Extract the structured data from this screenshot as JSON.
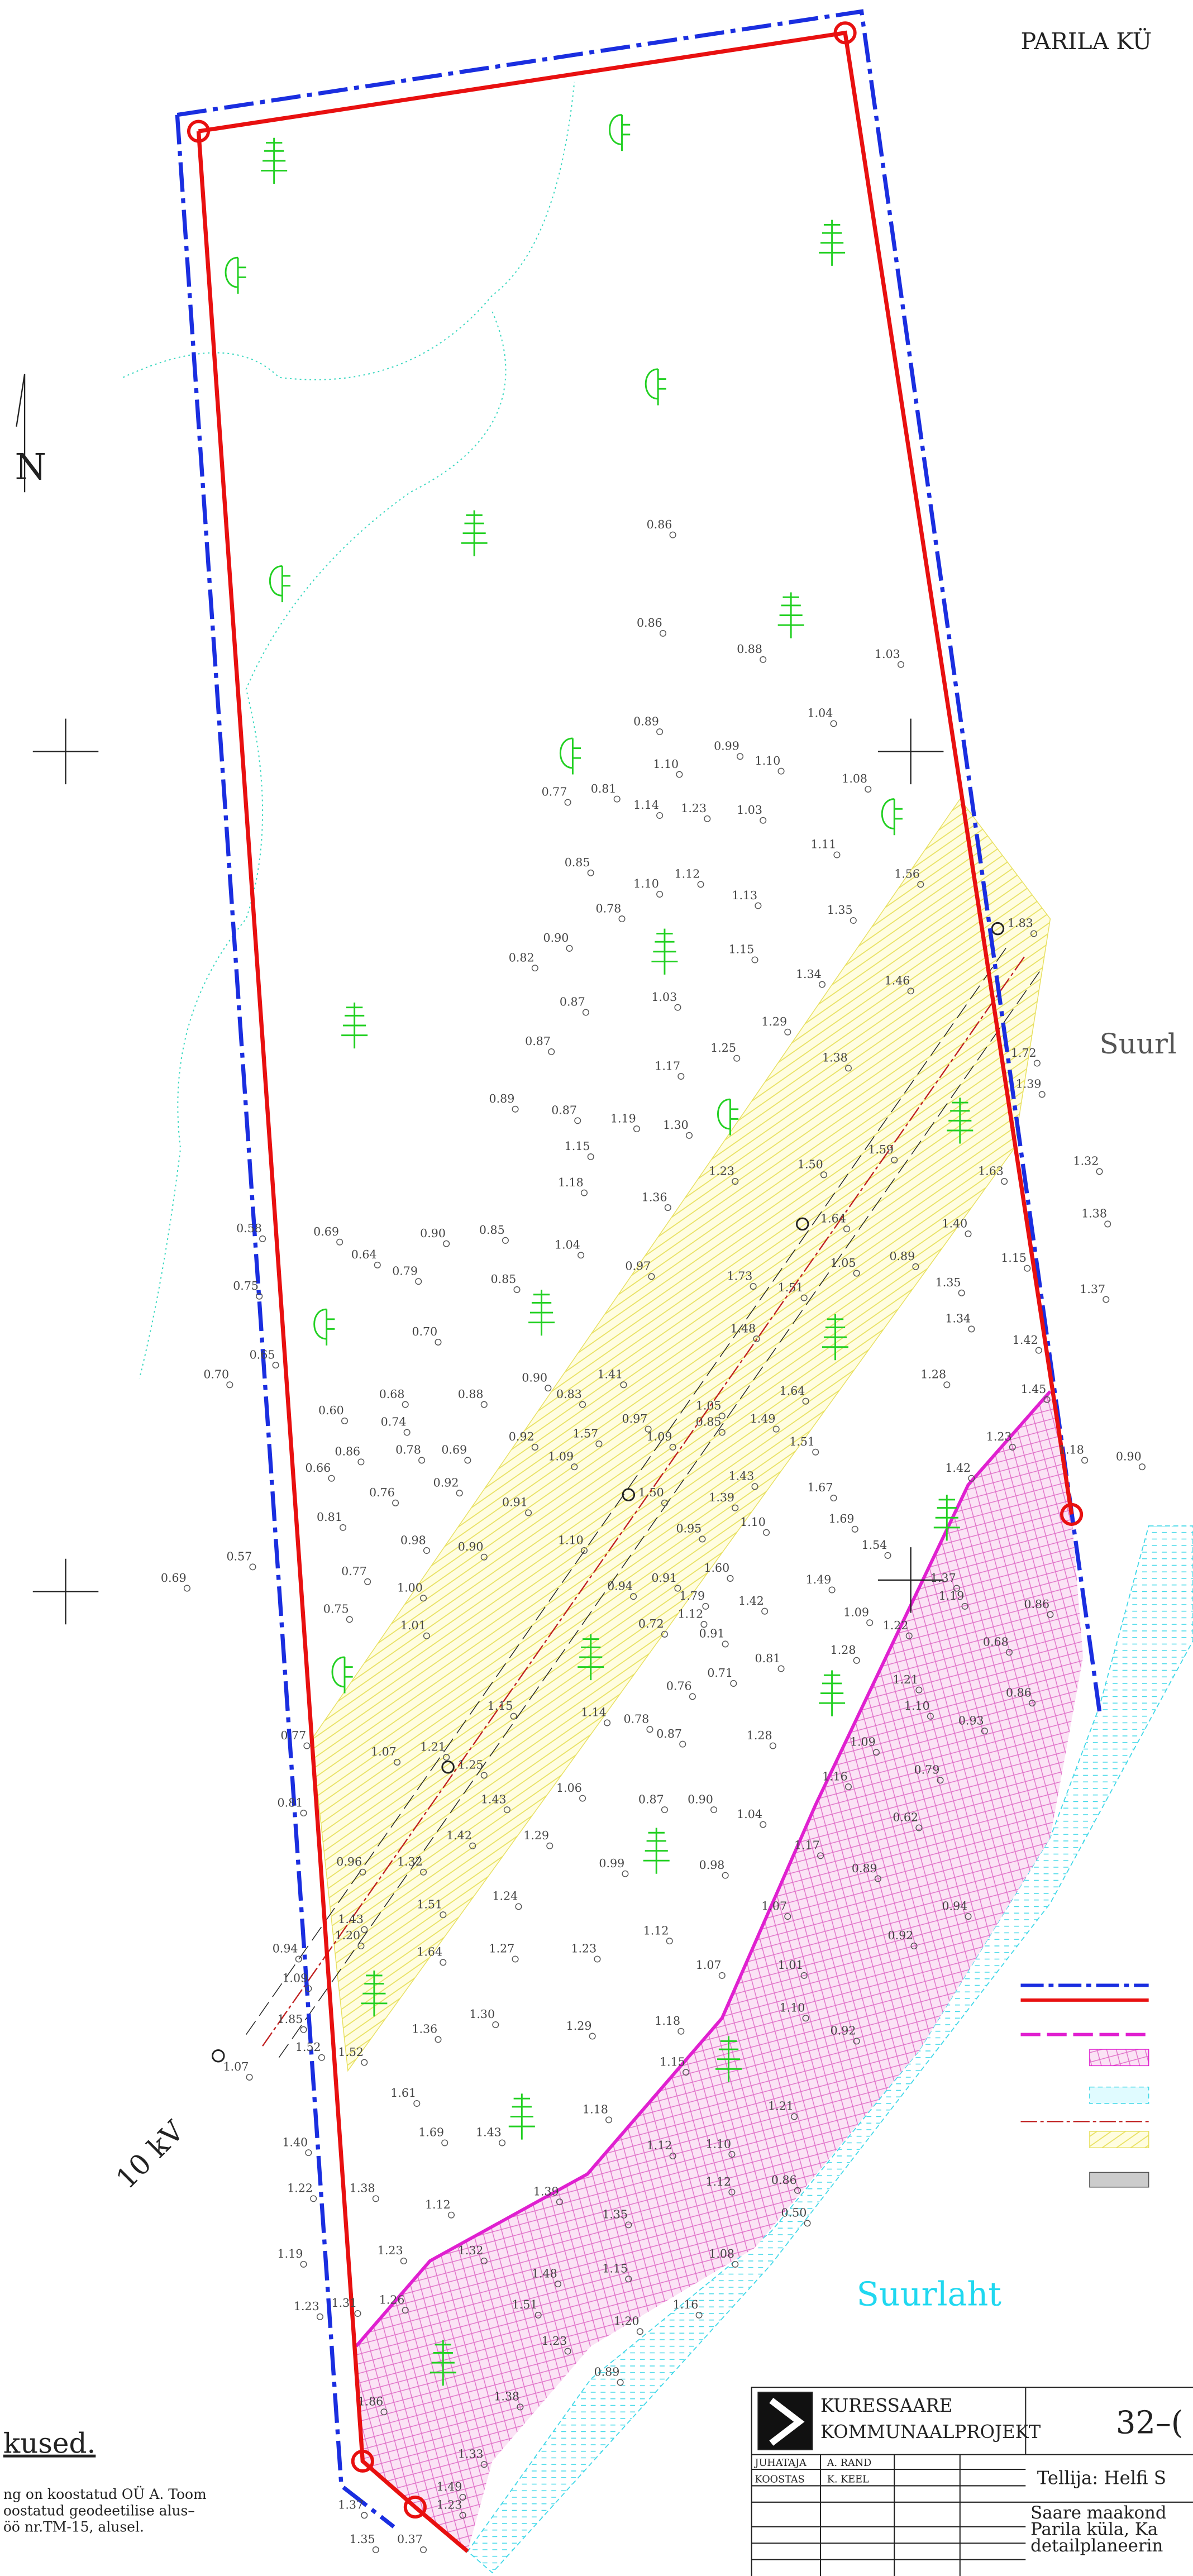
{
  "map": {
    "settlement": "PARILA KÜ",
    "north": "N",
    "bay_top": "Suurl",
    "bay_bottom": "Suurlaht",
    "power_line": "10 kV",
    "notes_heading": "kused.",
    "notes": [
      "ng on koostatud OÜ A. Toom",
      "oostatud geodeetilise alus–",
      "öö nr.TM-15, alusel."
    ],
    "title_block": {
      "company_1": "KURESSAARE",
      "company_2": "KOMMUNAALPROJEKT",
      "number": "32–(",
      "role_1": "JUHATAJA",
      "name_1": "A. RAND",
      "role_2": "KOOSTAS",
      "name_2": "K. KEEL",
      "client": "Tellija: Helfi S",
      "place_1": "Saare maakond",
      "place_2": "Parila küla, Ka",
      "place_3": "detailplaneerin"
    },
    "spot_heights": [
      "0.86",
      "0.86",
      "0.88",
      "1.03",
      "1.04",
      "0.89",
      "0.99",
      "1.10",
      "1.10",
      "1.08",
      "0.77",
      "0.81",
      "1.14",
      "1.23",
      "1.03",
      "1.11",
      "0.85",
      "1.10",
      "1.12",
      "1.13",
      "0.78",
      "1.35",
      "1.56",
      "0.90",
      "0.82",
      "1.15",
      "1.34",
      "1.46",
      "0.87",
      "1.03",
      "1.29",
      "0.87",
      "1.25",
      "1.38",
      "1.17",
      "0.89",
      "0.87",
      "1.19",
      "1.30",
      "1.15",
      "1.18",
      "1.23",
      "1.36",
      "1.50",
      "1.59",
      "1.63",
      "1.32",
      "1.38",
      "1.64",
      "1.40",
      "0.58",
      "0.69",
      "0.64",
      "0.90",
      "0.85",
      "0.79",
      "1.04",
      "0.97",
      "0.85",
      "1.73",
      "1.51",
      "1.05",
      "0.89",
      "1.35",
      "1.15",
      "1.37",
      "0.75",
      "1.34",
      "1.48",
      "0.70",
      "0.65",
      "0.70",
      "1.28",
      "1.42",
      "1.41",
      "0.90",
      "0.83",
      "0.68",
      "0.88",
      "1.64",
      "1.45",
      "0.60",
      "0.74",
      "1.05",
      "0.85",
      "1.49",
      "0.97",
      "1.57",
      "1.09",
      "0.92",
      "1.23",
      "0.86",
      "0.78",
      "0.69",
      "1.09",
      "1.51",
      "0.66",
      "1.42",
      "1.18",
      "0.90",
      "0.92",
      "1.43",
      "0.76",
      "1.50",
      "1.67",
      "1.39",
      "0.91",
      "0.81",
      "1.10",
      "1.69",
      "0.95",
      "0.98",
      "0.90",
      "1.10",
      "1.54",
      "0.57",
      "0.77",
      "1.60",
      "0.91",
      "1.37",
      "0.69",
      "1.00",
      "0.94",
      "1.79",
      "1.42",
      "1.49",
      "1.12",
      "1.19",
      "0.86",
      "0.75",
      "1.09",
      "1.22",
      "0.72",
      "0.91",
      "1.01",
      "0.68",
      "1.28",
      "0.81",
      "1.21",
      "0.71",
      "0.76",
      "0.86",
      "1.10",
      "0.93",
      "1.15",
      "1.14",
      "0.78",
      "0.87",
      "1.28",
      "1.09",
      "0.77",
      "1.07",
      "1.21",
      "1.25",
      "0.79",
      "1.16",
      "1.06",
      "0.81",
      "1.43",
      "0.87",
      "0.90",
      "1.04",
      "0.62",
      "1.29",
      "1.42",
      "0.96",
      "1.32",
      "0.99",
      "0.98",
      "1.17",
      "0.89",
      "1.24",
      "1.51",
      "1.07",
      "0.94",
      "1.43",
      "1.20",
      "1.12",
      "0.92",
      "0.94",
      "1.27",
      "1.23",
      "1.64",
      "1.07",
      "1.01",
      "1.09",
      "1.10",
      "0.92",
      "1.85",
      "1.30",
      "1.29",
      "1.18",
      "1.36",
      "1.52",
      "1.52",
      "1.15",
      "1.07",
      "1.61",
      "1.21",
      "1.18",
      "1.69",
      "1.43",
      "1.40",
      "1.12",
      "1.10",
      "1.38",
      "1.22",
      "1.39",
      "1.12",
      "0.86",
      "1.12",
      "0.50",
      "1.35",
      "1.19",
      "1.32",
      "1.08",
      "1.23",
      "1.15",
      "1.48",
      "1.23",
      "1.31",
      "1.51",
      "1.16",
      "1.26",
      "1.20",
      "1.23",
      "0.89",
      "1.38",
      "1.86",
      "1.33",
      "1.49",
      "1.23",
      "1.37",
      "1.35",
      "0.37",
      "1.83",
      "1.72",
      "1.39"
    ]
  }
}
